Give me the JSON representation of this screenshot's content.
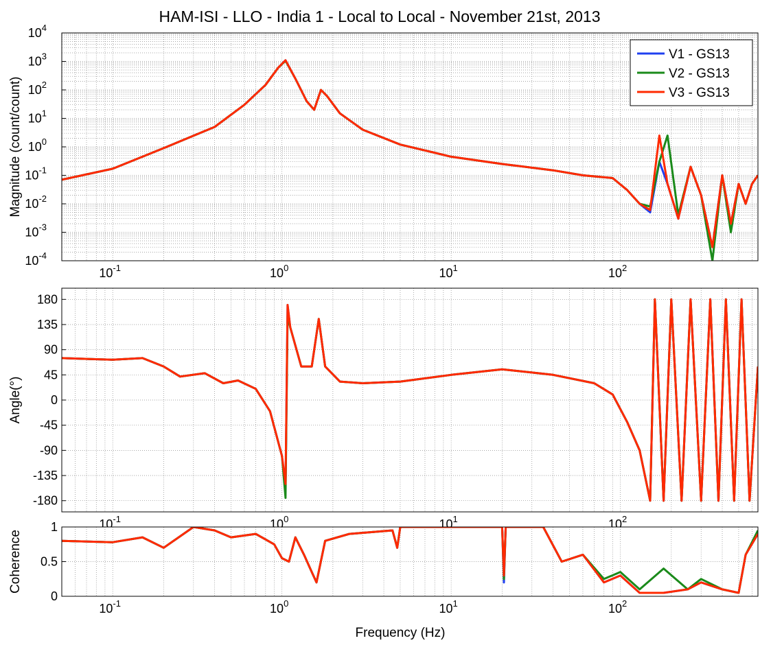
{
  "figure": {
    "title": "HAM-ISI - LLO - India 1 - Local to Local - November 21st, 2013",
    "xlabel": "Frequency (Hz)"
  },
  "colors": {
    "V1 - GS13": "#1f3ff0",
    "V2 - GS13": "#1a8a1a",
    "V3 - GS13": "#ff2a00"
  },
  "chart_data": [
    {
      "type": "line",
      "id": "magnitude",
      "title": "HAM-ISI - LLO - India 1 - Local to Local - November 21st, 2013",
      "ylabel": "Magnitude (count/count)",
      "xscale": "log",
      "yscale": "log",
      "xlim": [
        0.05,
        650
      ],
      "ylim": [
        0.0001,
        10000
      ],
      "grid": true,
      "legend_position": "top-right",
      "xticks": [
        0.1,
        1,
        10,
        100
      ],
      "xtick_labels": [
        [
          "10",
          "-1"
        ],
        [
          "10",
          "0"
        ],
        [
          "10",
          "1"
        ],
        [
          "10",
          "2"
        ]
      ],
      "yticks": [
        0.0001,
        0.001,
        0.01,
        0.1,
        1,
        10,
        100,
        1000,
        10000
      ],
      "ytick_labels": [
        [
          "10",
          "-4"
        ],
        [
          "10",
          "-3"
        ],
        [
          "10",
          "-2"
        ],
        [
          "10",
          "-1"
        ],
        [
          "10",
          "0"
        ],
        [
          "10",
          "1"
        ],
        [
          "10",
          "2"
        ],
        [
          "10",
          "3"
        ],
        [
          "10",
          "4"
        ]
      ],
      "series": [
        {
          "name": "V1 - GS13",
          "x": [
            0.05,
            0.1,
            0.2,
            0.4,
            0.6,
            0.8,
            0.95,
            1.05,
            1.2,
            1.4,
            1.55,
            1.7,
            1.85,
            2.2,
            3,
            5,
            10,
            20,
            40,
            60,
            90,
            110,
            130,
            150,
            170,
            190,
            220,
            260,
            300,
            350,
            400,
            450,
            500,
            550,
            600,
            650
          ],
          "y": [
            0.07,
            0.17,
            0.9,
            5,
            30,
            150,
            600,
            1100,
            250,
            40,
            20,
            100,
            60,
            15,
            4,
            1.2,
            0.45,
            0.25,
            0.15,
            0.1,
            0.08,
            0.03,
            0.01,
            0.005,
            0.3,
            0.05,
            0.003,
            0.2,
            0.02,
            0.0003,
            0.1,
            0.002,
            0.05,
            0.01,
            0.05,
            0.1
          ]
        },
        {
          "name": "V2 - GS13",
          "x": [
            0.05,
            0.1,
            0.2,
            0.4,
            0.6,
            0.8,
            0.95,
            1.05,
            1.2,
            1.4,
            1.55,
            1.7,
            1.85,
            2.2,
            3,
            5,
            10,
            20,
            40,
            60,
            90,
            110,
            130,
            150,
            170,
            190,
            220,
            260,
            300,
            350,
            400,
            450,
            500,
            550,
            600,
            650
          ],
          "y": [
            0.07,
            0.17,
            0.9,
            5,
            30,
            150,
            600,
            1050,
            250,
            40,
            20,
            100,
            60,
            15,
            4,
            1.2,
            0.45,
            0.25,
            0.15,
            0.1,
            0.08,
            0.03,
            0.01,
            0.008,
            0.3,
            2.5,
            0.004,
            0.2,
            0.02,
            0.0001,
            0.1,
            0.001,
            0.05,
            0.01,
            0.05,
            0.1
          ]
        },
        {
          "name": "V3 - GS13",
          "x": [
            0.05,
            0.1,
            0.2,
            0.4,
            0.6,
            0.8,
            0.95,
            1.05,
            1.2,
            1.4,
            1.55,
            1.7,
            1.85,
            2.2,
            3,
            5,
            10,
            20,
            40,
            60,
            90,
            110,
            130,
            150,
            170,
            190,
            220,
            260,
            300,
            350,
            400,
            450,
            500,
            550,
            600,
            650
          ],
          "y": [
            0.07,
            0.17,
            0.9,
            5,
            30,
            150,
            600,
            1100,
            250,
            40,
            20,
            100,
            60,
            15,
            4,
            1.2,
            0.45,
            0.25,
            0.15,
            0.1,
            0.08,
            0.03,
            0.01,
            0.006,
            2.5,
            0.05,
            0.003,
            0.2,
            0.02,
            0.0003,
            0.1,
            0.002,
            0.05,
            0.01,
            0.05,
            0.1
          ]
        }
      ]
    },
    {
      "type": "line",
      "id": "phase",
      "ylabel": "Angle(°)",
      "xscale": "log",
      "yscale": "linear",
      "xlim": [
        0.05,
        650
      ],
      "ylim": [
        -200,
        200
      ],
      "grid": true,
      "xticks": [
        0.1,
        1,
        10,
        100
      ],
      "xtick_labels": [
        [
          "10",
          "-1"
        ],
        [
          "10",
          "0"
        ],
        [
          "10",
          "1"
        ],
        [
          "10",
          "2"
        ]
      ],
      "yticks": [
        -180,
        -135,
        -90,
        -45,
        0,
        45,
        90,
        135,
        180
      ],
      "ytick_labels": [
        "-180",
        "-135",
        "-90",
        "-45",
        "0",
        "45",
        "90",
        "135",
        "180"
      ],
      "series": [
        {
          "name": "V1 - GS13",
          "x": [
            0.05,
            0.1,
            0.15,
            0.2,
            0.25,
            0.35,
            0.45,
            0.55,
            0.7,
            0.85,
            1.0,
            1.05,
            1.08,
            1.12,
            1.3,
            1.5,
            1.65,
            1.8,
            2.2,
            3,
            5,
            10,
            20,
            40,
            70,
            90,
            110,
            130,
            150,
            160,
            180,
            200,
            230,
            260,
            300,
            340,
            380,
            420,
            470,
            520,
            580,
            650
          ],
          "y": [
            75,
            72,
            75,
            60,
            42,
            48,
            30,
            35,
            20,
            -20,
            -100,
            -160,
            170,
            130,
            60,
            60,
            145,
            60,
            33,
            30,
            33,
            45,
            55,
            45,
            30,
            10,
            -40,
            -90,
            -180,
            180,
            -180,
            180,
            -180,
            180,
            -180,
            180,
            -180,
            180,
            -180,
            180,
            -180,
            60
          ]
        },
        {
          "name": "V2 - GS13",
          "x": [
            0.05,
            0.1,
            0.15,
            0.2,
            0.25,
            0.35,
            0.45,
            0.55,
            0.7,
            0.85,
            1.0,
            1.05,
            1.08,
            1.12,
            1.3,
            1.5,
            1.65,
            1.8,
            2.2,
            3,
            5,
            10,
            20,
            40,
            70,
            90,
            110,
            130,
            150,
            160,
            180,
            200,
            230,
            260,
            300,
            340,
            380,
            420,
            470,
            520,
            580,
            650
          ],
          "y": [
            75,
            72,
            75,
            60,
            42,
            48,
            30,
            35,
            20,
            -20,
            -100,
            -175,
            150,
            130,
            60,
            60,
            145,
            60,
            33,
            30,
            33,
            45,
            55,
            45,
            30,
            10,
            -40,
            -90,
            -180,
            180,
            -180,
            180,
            -180,
            180,
            -180,
            180,
            -180,
            180,
            -180,
            180,
            -180,
            60
          ]
        },
        {
          "name": "V3 - GS13",
          "x": [
            0.05,
            0.1,
            0.15,
            0.2,
            0.25,
            0.35,
            0.45,
            0.55,
            0.7,
            0.85,
            1.0,
            1.05,
            1.08,
            1.12,
            1.3,
            1.5,
            1.65,
            1.8,
            2.2,
            3,
            5,
            10,
            20,
            40,
            70,
            90,
            110,
            130,
            150,
            160,
            180,
            200,
            230,
            260,
            300,
            340,
            380,
            420,
            470,
            520,
            580,
            650
          ],
          "y": [
            75,
            72,
            75,
            60,
            42,
            48,
            30,
            35,
            20,
            -20,
            -100,
            -150,
            170,
            130,
            60,
            60,
            145,
            60,
            33,
            30,
            33,
            45,
            55,
            45,
            30,
            10,
            -40,
            -90,
            -180,
            180,
            -180,
            180,
            -180,
            180,
            -180,
            180,
            -180,
            180,
            -180,
            180,
            -180,
            60
          ]
        }
      ]
    },
    {
      "type": "line",
      "id": "coherence",
      "ylabel": "Coherence",
      "xlabel": "Frequency (Hz)",
      "xscale": "log",
      "yscale": "linear",
      "xlim": [
        0.05,
        650
      ],
      "ylim": [
        0,
        1
      ],
      "grid": true,
      "xticks": [
        0.1,
        1,
        10,
        100
      ],
      "xtick_labels": [
        [
          "10",
          "-1"
        ],
        [
          "10",
          "0"
        ],
        [
          "10",
          "1"
        ],
        [
          "10",
          "2"
        ]
      ],
      "yticks": [
        0,
        0.5,
        1
      ],
      "ytick_labels": [
        "0",
        "0.5",
        "1"
      ],
      "series": [
        {
          "name": "V1 - GS13",
          "x": [
            0.05,
            0.1,
            0.15,
            0.2,
            0.3,
            0.4,
            0.5,
            0.7,
            0.9,
            1.0,
            1.1,
            1.2,
            1.35,
            1.5,
            1.6,
            1.8,
            2.5,
            4.5,
            4.8,
            5,
            10,
            20,
            20.5,
            21,
            35,
            45,
            60,
            80,
            100,
            130,
            180,
            250,
            300,
            400,
            500,
            550,
            650
          ],
          "y": [
            0.8,
            0.78,
            0.85,
            0.7,
            1.0,
            0.95,
            0.85,
            0.9,
            0.75,
            0.55,
            0.5,
            0.85,
            0.6,
            0.35,
            0.2,
            0.8,
            0.9,
            0.95,
            0.7,
            1.0,
            1.0,
            1.0,
            0.2,
            1.0,
            1.0,
            0.5,
            0.6,
            0.2,
            0.3,
            0.05,
            0.05,
            0.1,
            0.2,
            0.1,
            0.05,
            0.6,
            0.9
          ]
        },
        {
          "name": "V2 - GS13",
          "x": [
            0.05,
            0.1,
            0.15,
            0.2,
            0.3,
            0.4,
            0.5,
            0.7,
            0.9,
            1.0,
            1.1,
            1.2,
            1.35,
            1.5,
            1.6,
            1.8,
            2.5,
            4.5,
            4.8,
            5,
            10,
            20,
            20.5,
            21,
            35,
            45,
            60,
            80,
            100,
            130,
            180,
            250,
            300,
            400,
            500,
            550,
            650
          ],
          "y": [
            0.8,
            0.78,
            0.85,
            0.7,
            1.0,
            0.95,
            0.85,
            0.9,
            0.75,
            0.55,
            0.5,
            0.85,
            0.6,
            0.35,
            0.2,
            0.8,
            0.9,
            0.95,
            0.7,
            1.0,
            1.0,
            1.0,
            0.25,
            1.0,
            1.0,
            0.5,
            0.6,
            0.25,
            0.35,
            0.1,
            0.4,
            0.1,
            0.25,
            0.1,
            0.05,
            0.6,
            0.95
          ]
        },
        {
          "name": "V3 - GS13",
          "x": [
            0.05,
            0.1,
            0.15,
            0.2,
            0.3,
            0.4,
            0.5,
            0.7,
            0.9,
            1.0,
            1.1,
            1.2,
            1.35,
            1.5,
            1.6,
            1.8,
            2.5,
            4.5,
            4.8,
            5,
            10,
            20,
            20.5,
            21,
            35,
            45,
            60,
            80,
            100,
            130,
            180,
            250,
            300,
            400,
            500,
            550,
            650
          ],
          "y": [
            0.8,
            0.78,
            0.85,
            0.7,
            1.0,
            0.95,
            0.85,
            0.9,
            0.75,
            0.55,
            0.5,
            0.85,
            0.6,
            0.35,
            0.2,
            0.8,
            0.9,
            0.95,
            0.7,
            1.0,
            1.0,
            1.0,
            0.3,
            1.0,
            1.0,
            0.5,
            0.6,
            0.2,
            0.3,
            0.05,
            0.05,
            0.1,
            0.2,
            0.1,
            0.05,
            0.6,
            0.9
          ]
        }
      ]
    }
  ]
}
